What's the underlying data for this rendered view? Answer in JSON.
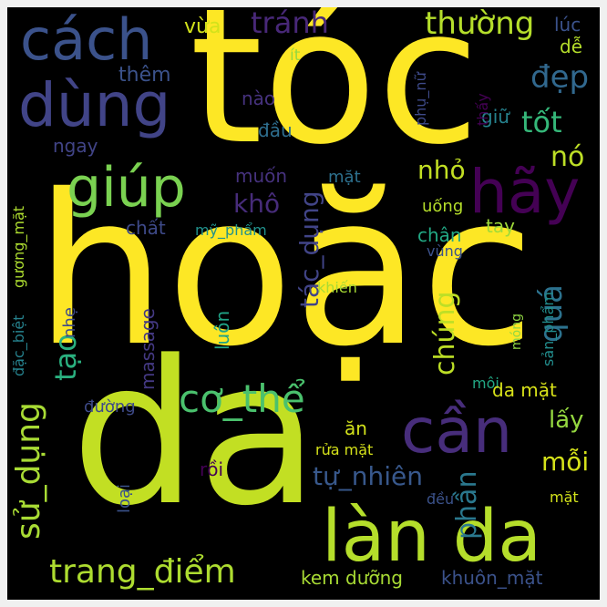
{
  "wordcloud": {
    "words": [
      {
        "text": "tóc",
        "color": "#fde725"
      },
      {
        "text": "hoặc",
        "color": "#fde725"
      },
      {
        "text": "da",
        "color": "#c2df23"
      },
      {
        "text": "làn da",
        "color": "#b5de2b"
      },
      {
        "text": "cách",
        "color": "#3b528b"
      },
      {
        "text": "dùng",
        "color": "#414487"
      },
      {
        "text": "giúp",
        "color": "#7ad151"
      },
      {
        "text": "hãy",
        "color": "#440154"
      },
      {
        "text": "cần",
        "color": "#472d7b"
      },
      {
        "text": "cơ_thể",
        "color": "#4ac16d"
      },
      {
        "text": "trang_điểm",
        "color": "#addc30"
      },
      {
        "text": "thường",
        "color": "#b5de2b"
      },
      {
        "text": "tránh",
        "color": "#482878"
      },
      {
        "text": "đẹp",
        "color": "#31688e"
      },
      {
        "text": "tốt",
        "color": "#35b779"
      },
      {
        "text": "nó",
        "color": "#bddf26"
      },
      {
        "text": "nhỏ",
        "color": "#c2df23"
      },
      {
        "text": "khô",
        "color": "#472c7a"
      },
      {
        "text": "tác_dụng",
        "color": "#414487"
      },
      {
        "text": "quá",
        "color": "#2c728e"
      },
      {
        "text": "chúng",
        "color": "#bddf26"
      },
      {
        "text": "phần",
        "color": "#2a788e"
      },
      {
        "text": "mỗi",
        "color": "#d5e21a"
      },
      {
        "text": "lấy",
        "color": "#95d840"
      },
      {
        "text": "tự_nhiên",
        "color": "#38588c"
      },
      {
        "text": "sử_dụng",
        "color": "#a8db34"
      },
      {
        "text": "tạo",
        "color": "#2ab07f"
      },
      {
        "text": "thêm",
        "color": "#3b528b"
      },
      {
        "text": "vừa",
        "color": "#d2e21b"
      },
      {
        "text": "ít",
        "color": "#95d840"
      },
      {
        "text": "nào",
        "color": "#46327e"
      },
      {
        "text": "đầu",
        "color": "#2e6e8e"
      },
      {
        "text": "ngay",
        "color": "#414487"
      },
      {
        "text": "muốn",
        "color": "#46327e"
      },
      {
        "text": "mặt",
        "color": "#2d708e"
      },
      {
        "text": "chất",
        "color": "#3e4a89"
      },
      {
        "text": "mỹ_phẩm",
        "color": "#21918c"
      },
      {
        "text": "lúc",
        "color": "#3b528b"
      },
      {
        "text": "dễ",
        "color": "#b5de2b"
      },
      {
        "text": "phụ_nữ",
        "color": "#3e4a89"
      },
      {
        "text": "thấy",
        "color": "#440154"
      },
      {
        "text": "giữ",
        "color": "#26828e"
      },
      {
        "text": "uống",
        "color": "#b5de2b"
      },
      {
        "text": "tay",
        "color": "#a0da39"
      },
      {
        "text": "chân",
        "color": "#22a884"
      },
      {
        "text": "vùng",
        "color": "#3b528b"
      },
      {
        "text": "khiến",
        "color": "#a8db34"
      },
      {
        "text": "móng",
        "color": "#90d743"
      },
      {
        "text": "sản_phẩm",
        "color": "#228d8d"
      },
      {
        "text": "môi",
        "color": "#22a884"
      },
      {
        "text": "da mặt",
        "color": "#d8e219"
      },
      {
        "text": "đường",
        "color": "#3e4a89"
      },
      {
        "text": "ăn",
        "color": "#d2e21b"
      },
      {
        "text": "rửa mặt",
        "color": "#d5e21a"
      },
      {
        "text": "rồi",
        "color": "#440154"
      },
      {
        "text": "loại",
        "color": "#3b528b"
      },
      {
        "text": "đều",
        "color": "#3b528b"
      },
      {
        "text": "mặt",
        "color": "#d2e21b"
      },
      {
        "text": "kem dưỡng",
        "color": "#a8db34"
      },
      {
        "text": "khuôn_mặt",
        "color": "#3b528b"
      },
      {
        "text": "massage",
        "color": "#443983"
      },
      {
        "text": "luôn",
        "color": "#20a386"
      },
      {
        "text": "nhẹ",
        "color": "#3e4a89"
      },
      {
        "text": "đặc_biệt",
        "color": "#26828e"
      },
      {
        "text": "gương_mặt",
        "color": "#addc30"
      }
    ]
  }
}
